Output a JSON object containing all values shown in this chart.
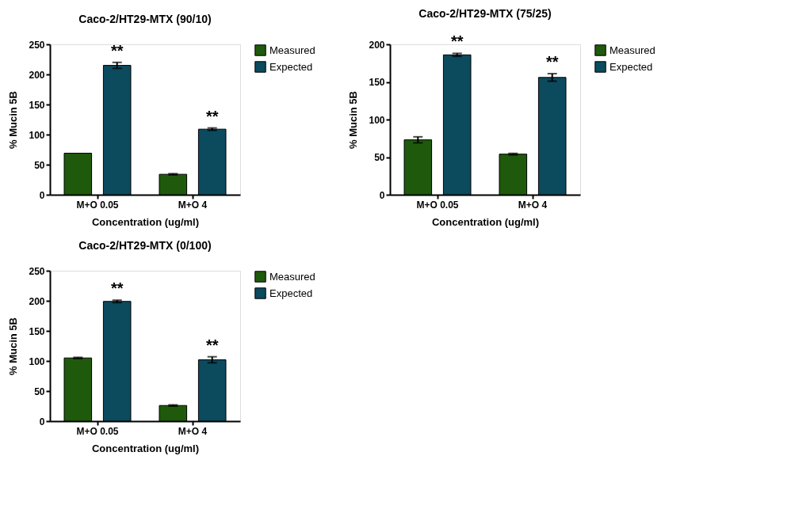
{
  "chart_data": [
    {
      "type": "bar",
      "title": "Caco-2/HT29-MTX (90/10)",
      "xlabel": "Concentration (ug/ml)",
      "ylabel": "% Mucin 5B",
      "categories": [
        "M+O 0.05",
        "M+O 4"
      ],
      "series": [
        {
          "name": "Measured",
          "color": "#1f5a0c",
          "values": [
            69,
            34
          ],
          "errors": [
            null,
            1
          ]
        },
        {
          "name": "Expected",
          "color": "#0c4a5e",
          "values": [
            215,
            109
          ],
          "errors": [
            5,
            2
          ]
        }
      ],
      "ylim": [
        0,
        250
      ],
      "yticks": [
        0,
        50,
        100,
        150,
        200,
        250
      ],
      "grid": false,
      "legend": "right",
      "annotations": [
        "**",
        "**"
      ]
    },
    {
      "type": "bar",
      "title": "Caco-2/HT29-MTX (75/25)",
      "xlabel": "Concentration (ug/ml)",
      "ylabel": "% Mucin 5B",
      "categories": [
        "M+O 0.05",
        "M+O 4"
      ],
      "series": [
        {
          "name": "Measured",
          "color": "#1f5a0c",
          "values": [
            73,
            54
          ],
          "errors": [
            4,
            1
          ]
        },
        {
          "name": "Expected",
          "color": "#0c4a5e",
          "values": [
            186,
            156
          ],
          "errors": [
            2,
            5
          ]
        }
      ],
      "ylim": [
        0,
        200
      ],
      "yticks": [
        0,
        50,
        100,
        150,
        200
      ],
      "grid": false,
      "legend": "right",
      "annotations": [
        "**",
        "**"
      ]
    },
    {
      "type": "bar",
      "title": "Caco-2/HT29-MTX (0/100)",
      "xlabel": "Concentration (ug/ml)",
      "ylabel": "% Mucin 5B",
      "categories": [
        "M+O 0.05",
        "M+O 4"
      ],
      "series": [
        {
          "name": "Measured",
          "color": "#1f5a0c",
          "values": [
            105,
            26
          ],
          "errors": [
            1,
            1
          ]
        },
        {
          "name": "Expected",
          "color": "#0c4a5e",
          "values": [
            199,
            102
          ],
          "errors": [
            2,
            5
          ]
        }
      ],
      "ylim": [
        0,
        250
      ],
      "yticks": [
        0,
        50,
        100,
        150,
        200,
        250
      ],
      "grid": false,
      "legend": "right",
      "annotations": [
        "**",
        "**"
      ]
    }
  ]
}
